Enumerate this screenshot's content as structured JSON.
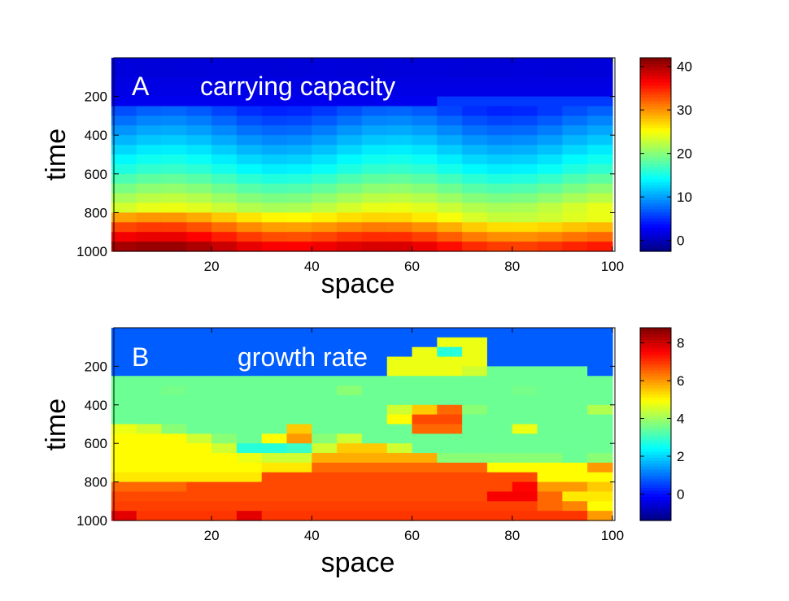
{
  "chart_data": [
    {
      "type": "heatmap",
      "panel_label": "A",
      "title": "carrying capacity",
      "xlabel": "space",
      "ylabel": "time",
      "xlim": [
        0.5,
        100.5
      ],
      "ylim": [
        0,
        1000
      ],
      "y_reversed": true,
      "xticks": [
        20,
        40,
        60,
        80,
        100
      ],
      "yticks": [
        200,
        400,
        600,
        800,
        1000
      ],
      "colormap": "jet",
      "clim": [
        -2.5,
        42
      ],
      "colorbar_ticks": [
        0,
        10,
        20,
        30,
        40
      ],
      "x": [
        2.5,
        7.5,
        12.5,
        17.5,
        22.5,
        27.5,
        32.5,
        37.5,
        42.5,
        47.5,
        52.5,
        57.5,
        62.5,
        67.5,
        72.5,
        77.5,
        82.5,
        87.5,
        92.5,
        97.5
      ],
      "y": [
        25,
        75,
        125,
        175,
        225,
        275,
        325,
        375,
        425,
        475,
        525,
        575,
        625,
        675,
        725,
        775,
        825,
        875,
        925,
        975
      ],
      "z": [
        [
          1.6,
          1.5,
          1.4,
          1.5,
          1.6,
          1.5,
          1.4,
          1.5,
          1.6,
          1.5,
          1.4,
          1.5,
          1.6,
          1.5,
          1.4,
          1.5,
          1.6,
          1.5,
          1.4,
          1.5
        ],
        [
          1.6,
          1.5,
          1.4,
          1.5,
          1.6,
          1.5,
          1.4,
          1.5,
          1.6,
          1.5,
          1.4,
          1.5,
          1.6,
          1.5,
          1.4,
          1.5,
          1.6,
          1.5,
          1.4,
          1.5
        ],
        [
          1.8,
          1.8,
          1.8,
          1.8,
          1.8,
          1.8,
          1.8,
          1.8,
          1.8,
          1.8,
          1.8,
          1.8,
          1.8,
          1.8,
          1.8,
          1.8,
          1.8,
          1.8,
          1.8,
          1.8
        ],
        [
          2,
          2,
          2,
          2,
          2,
          2,
          2,
          2,
          2,
          2,
          2,
          2,
          2,
          2,
          2,
          2,
          2,
          2,
          2,
          2
        ],
        [
          2.3,
          2.3,
          2.3,
          2.3,
          2.3,
          2.3,
          2.3,
          2.3,
          2.3,
          2.3,
          2.3,
          2.3,
          2.3,
          5.5,
          5.5,
          5.5,
          5.5,
          5.5,
          5.5,
          5.5
        ],
        [
          6.5,
          7.3,
          7.5,
          7,
          6,
          5,
          4.5,
          4.7,
          5.5,
          6.5,
          7.3,
          7.5,
          7,
          6,
          5,
          4.5,
          4.7,
          5.5,
          6.5,
          7.3
        ],
        [
          8,
          8.8,
          9,
          8.5,
          7.5,
          6.5,
          6,
          6.2,
          7,
          8,
          8.8,
          9,
          8.5,
          7.5,
          6.5,
          6,
          6.2,
          7,
          8,
          8.8
        ],
        [
          9.5,
          10.3,
          10.5,
          10,
          9,
          8,
          7.5,
          7.7,
          8.5,
          9.5,
          10.3,
          10.5,
          10,
          9,
          8,
          7.5,
          7.7,
          8.5,
          9.5,
          10.3
        ],
        [
          11,
          11.8,
          12,
          11.5,
          10.5,
          9.5,
          9,
          9.2,
          10,
          11,
          11.8,
          12,
          11.5,
          10.5,
          9.5,
          9,
          9.2,
          10,
          11,
          11.8
        ],
        [
          12.5,
          13.3,
          13.5,
          13,
          12,
          11,
          10.5,
          10.7,
          11.5,
          12.5,
          13.3,
          13.5,
          13,
          12,
          11,
          10.5,
          10.7,
          11.5,
          12.5,
          13.3
        ],
        [
          14,
          14.8,
          15,
          14.5,
          13.5,
          12.5,
          12,
          12.2,
          13,
          14,
          14.8,
          15,
          14.5,
          13.5,
          12.5,
          12,
          12.2,
          13,
          14,
          14.8
        ],
        [
          15.5,
          16.3,
          16.5,
          16,
          15,
          14,
          13.5,
          13.7,
          14.5,
          15.5,
          16.3,
          16.5,
          16,
          15,
          14,
          13.5,
          13.7,
          14.5,
          15.5,
          16.3
        ],
        [
          17.5,
          18.3,
          18.5,
          18,
          17,
          16,
          15.5,
          15.7,
          16.5,
          17.5,
          18.3,
          18.5,
          18,
          17,
          16,
          15.5,
          15.7,
          16.5,
          17.5,
          18.3
        ],
        [
          19.5,
          20.3,
          20.5,
          20,
          19,
          18,
          17.5,
          17.7,
          18.5,
          19.5,
          20.3,
          20.5,
          20,
          19,
          18,
          17.5,
          17.7,
          18.5,
          19.5,
          20.3
        ],
        [
          21.5,
          22.3,
          22.5,
          22,
          21,
          20,
          19.5,
          19.7,
          20.5,
          21.5,
          22.3,
          22.5,
          22,
          21,
          20,
          19.5,
          19.7,
          20.5,
          21.5,
          22.3
        ],
        [
          23.5,
          24.3,
          24.5,
          24,
          23,
          22,
          21.5,
          21.7,
          22.5,
          23.5,
          24.3,
          24.5,
          24,
          23,
          22,
          21.5,
          21.7,
          22.5,
          23.5,
          24.3
        ],
        [
          29.4,
          29.9,
          29.8,
          29,
          27.7,
          26.4,
          25.6,
          25.5,
          26,
          26.7,
          27.1,
          27,
          26.2,
          24.9,
          23.6,
          22.8,
          22.7,
          23.2,
          23.9,
          24.4
        ],
        [
          33.4,
          33.9,
          33.8,
          33,
          31.7,
          30.4,
          29.6,
          29.5,
          30,
          30.7,
          31.1,
          31,
          30.2,
          28.9,
          27.6,
          26.8,
          26.7,
          27.2,
          27.9,
          28.4
        ],
        [
          36.9,
          37.4,
          37.3,
          36.5,
          35.2,
          33.9,
          33.1,
          33,
          33.5,
          34.2,
          34.6,
          34.5,
          33.7,
          32.4,
          31.1,
          30.3,
          30.2,
          30.7,
          31.4,
          31.9
        ],
        [
          40.4,
          40.9,
          40.8,
          40,
          38.7,
          37.4,
          36.6,
          36.5,
          37,
          37.7,
          38.1,
          38,
          37.2,
          35.9,
          34.6,
          33.8,
          33.7,
          34.2,
          34.9,
          35.4
        ]
      ]
    },
    {
      "type": "heatmap",
      "panel_label": "B",
      "title": "growth rate",
      "xlabel": "space",
      "ylabel": "time",
      "xlim": [
        0.5,
        100.5
      ],
      "ylim": [
        0,
        1000
      ],
      "y_reversed": true,
      "xticks": [
        20,
        40,
        60,
        80,
        100
      ],
      "yticks": [
        200,
        400,
        600,
        800,
        1000
      ],
      "colormap": "jet",
      "clim": [
        -1.4,
        8.8
      ],
      "colorbar_ticks": [
        0,
        2,
        4,
        6,
        8
      ],
      "x": [
        2.5,
        7.5,
        12.5,
        17.5,
        22.5,
        27.5,
        32.5,
        37.5,
        42.5,
        47.5,
        52.5,
        57.5,
        62.5,
        67.5,
        72.5,
        77.5,
        82.5,
        87.5,
        92.5,
        97.5
      ],
      "y": [
        25,
        75,
        125,
        175,
        225,
        275,
        325,
        375,
        425,
        475,
        525,
        575,
        625,
        675,
        725,
        775,
        825,
        875,
        925,
        975
      ],
      "z": [
        [
          0.8,
          0.8,
          0.8,
          0.8,
          0.8,
          0.8,
          0.8,
          0.8,
          0.8,
          0.8,
          0.8,
          0.8,
          0.8,
          0.8,
          0.8,
          0.8,
          0.8,
          0.8,
          0.8,
          0.8
        ],
        [
          0.8,
          0.8,
          0.8,
          0.8,
          0.8,
          0.8,
          0.8,
          0.8,
          0.8,
          0.8,
          0.8,
          0.8,
          0.8,
          4.8,
          4.8,
          0.8,
          0.8,
          0.8,
          0.8,
          0.8
        ],
        [
          0.8,
          0.8,
          0.8,
          0.8,
          0.8,
          0.8,
          0.8,
          0.8,
          0.8,
          0.8,
          0.8,
          0.8,
          4.8,
          2.8,
          4.8,
          0.8,
          0.8,
          0.8,
          0.8,
          0.8
        ],
        [
          0.8,
          0.8,
          0.8,
          0.8,
          0.8,
          0.8,
          0.8,
          0.8,
          0.8,
          0.8,
          0.8,
          4.8,
          4.8,
          4.8,
          4.8,
          0.8,
          0.8,
          0.8,
          0.8,
          0.8
        ],
        [
          0.8,
          0.8,
          0.8,
          0.8,
          0.8,
          0.8,
          0.8,
          0.8,
          0.8,
          0.8,
          0.8,
          4.8,
          4.8,
          4.8,
          4.5,
          3.5,
          3.5,
          3.5,
          3.5,
          0.8
        ],
        [
          3.5,
          3.5,
          3.5,
          3.5,
          3.5,
          3.5,
          3.5,
          3.5,
          3.5,
          3.5,
          3.5,
          3.5,
          3.5,
          3.5,
          3.5,
          3.5,
          3.5,
          3.5,
          3.5,
          3.5
        ],
        [
          3.5,
          3.5,
          3.6,
          3.5,
          3.5,
          3.5,
          3.5,
          3.5,
          3.5,
          3.8,
          3.5,
          3.5,
          3.5,
          3.5,
          3.5,
          3.5,
          3.6,
          3.5,
          3.5,
          3.5
        ],
        [
          3.5,
          3.5,
          3.5,
          3.5,
          3.5,
          3.5,
          3.5,
          3.5,
          3.5,
          3.5,
          3.5,
          3.5,
          3.5,
          3.5,
          3.5,
          3.5,
          3.5,
          3.5,
          3.5,
          3.5
        ],
        [
          3.5,
          3.5,
          3.5,
          3.5,
          3.5,
          3.5,
          3.5,
          3.5,
          3.5,
          3.5,
          3.5,
          4.5,
          5.5,
          6.5,
          3.8,
          3.5,
          3.5,
          3.5,
          3.5,
          4.2
        ],
        [
          3.5,
          3.5,
          3.5,
          3.5,
          3.5,
          3.5,
          3.5,
          3.5,
          3.5,
          3.5,
          3.5,
          5,
          6.8,
          6.8,
          3.5,
          3.5,
          3.5,
          3.5,
          3.5,
          3.5
        ],
        [
          4.8,
          4.5,
          3.8,
          3.5,
          3.5,
          3.5,
          3.5,
          5.5,
          3.5,
          3.5,
          3.5,
          3.5,
          6.5,
          6.5,
          3.5,
          3.5,
          4.8,
          3.5,
          3.5,
          3.5
        ],
        [
          5,
          5,
          5,
          4.5,
          3.8,
          3.5,
          5,
          6,
          3.8,
          4.5,
          3.5,
          3.5,
          3.5,
          3.5,
          3.5,
          3.5,
          3.5,
          3.5,
          3.5,
          3.5
        ],
        [
          5,
          5,
          5,
          5,
          4.5,
          2.8,
          2.8,
          3,
          4.5,
          5.5,
          5.5,
          4.5,
          3.5,
          3.5,
          3.5,
          3.5,
          3.5,
          3.5,
          3.5,
          3.5
        ],
        [
          5,
          5,
          5,
          5,
          5,
          4.8,
          4.5,
          4.5,
          5.8,
          5.8,
          5.8,
          5.8,
          5.8,
          3.8,
          3.8,
          3.8,
          3.8,
          3.8,
          3.5,
          3.8
        ],
        [
          5,
          5,
          5,
          5,
          5,
          5,
          5.2,
          5.2,
          6.5,
          6.5,
          6.5,
          6.5,
          6.5,
          6.5,
          6.5,
          5,
          5,
          5,
          5,
          6
        ],
        [
          5.2,
          5.2,
          5.2,
          5.2,
          5.2,
          5.2,
          6.8,
          6.8,
          6.8,
          6.8,
          6.8,
          6.8,
          6.8,
          6.8,
          6.8,
          6.8,
          6.8,
          5,
          5,
          5
        ],
        [
          6.5,
          6.5,
          6.5,
          6.8,
          6.8,
          6.8,
          6.8,
          6.8,
          6.8,
          6.8,
          6.8,
          6.8,
          6.8,
          6.8,
          6.8,
          6.8,
          7.5,
          6,
          6,
          5.5
        ],
        [
          6.8,
          6.8,
          6.8,
          6.8,
          6.8,
          6.8,
          6.8,
          6.8,
          6.8,
          6.8,
          6.8,
          6.8,
          6.8,
          6.8,
          6.8,
          7.6,
          7.6,
          6.5,
          5.2,
          5.2
        ],
        [
          6.9,
          6.9,
          6.9,
          6.9,
          6.9,
          6.9,
          6.9,
          6.9,
          6.9,
          6.9,
          6.9,
          6.9,
          6.9,
          6.9,
          6.9,
          6.9,
          6.9,
          6.5,
          6.2,
          5
        ],
        [
          7.8,
          7,
          7,
          7,
          7,
          7.8,
          7,
          7,
          7,
          7,
          7,
          7,
          7,
          7,
          7,
          7,
          7,
          7,
          7,
          6
        ]
      ]
    }
  ]
}
